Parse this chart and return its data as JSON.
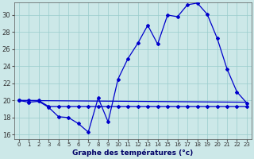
{
  "xlabel": "Graphe des températures (°c)",
  "bg_color": "#cce8e8",
  "line_color": "#0000cc",
  "grid_color": "#99cccc",
  "ylim": [
    15.5,
    31.5
  ],
  "yticks": [
    16,
    18,
    20,
    22,
    24,
    26,
    28,
    30
  ],
  "xlim": [
    -0.5,
    23.5
  ],
  "xticks": [
    0,
    1,
    2,
    3,
    4,
    5,
    6,
    7,
    8,
    9,
    10,
    11,
    12,
    13,
    14,
    15,
    16,
    17,
    18,
    19,
    20,
    21,
    22,
    23
  ],
  "series1_x": [
    0,
    1,
    2,
    3,
    4,
    5,
    6,
    7,
    8,
    9,
    10,
    11,
    12,
    13,
    14,
    15,
    16,
    17,
    18,
    19,
    20,
    21,
    22,
    23
  ],
  "series1_y": [
    20.0,
    19.8,
    19.9,
    19.2,
    18.1,
    18.0,
    17.3,
    16.3,
    20.3,
    17.5,
    22.5,
    24.9,
    26.7,
    28.8,
    26.6,
    30.0,
    29.8,
    31.2,
    31.4,
    30.1,
    27.3,
    23.7,
    21.0,
    19.7
  ],
  "series2_x": [
    0,
    1,
    2,
    3,
    4,
    5,
    6,
    7,
    8,
    9,
    10,
    11,
    12,
    13,
    14,
    15,
    16,
    17,
    18,
    19,
    20,
    21,
    22,
    23
  ],
  "series2_y": [
    20.0,
    20.0,
    20.0,
    19.3,
    19.3,
    19.3,
    19.3,
    19.3,
    19.3,
    19.3,
    19.3,
    19.3,
    19.3,
    19.3,
    19.3,
    19.3,
    19.3,
    19.3,
    19.3,
    19.3,
    19.3,
    19.3,
    19.3,
    19.3
  ],
  "series3_x": [
    0,
    23
  ],
  "series3_y": [
    20.0,
    19.8
  ]
}
